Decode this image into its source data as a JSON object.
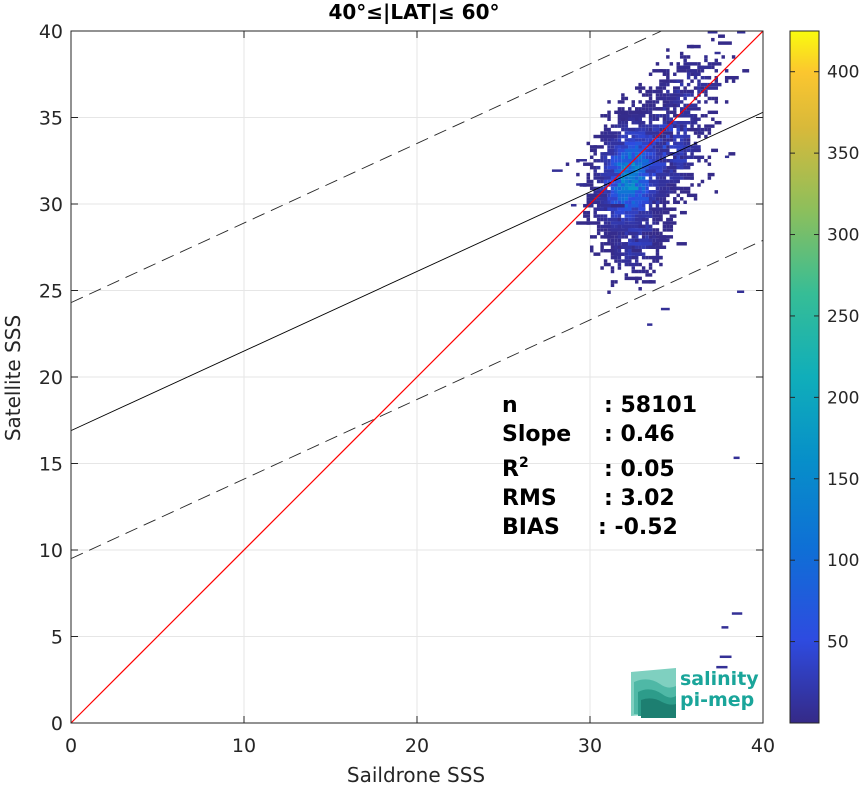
{
  "chart_data": {
    "type": "heatmap",
    "title": "40°≤|LAT|≤ 60°",
    "xlabel": "Saildrone SSS",
    "ylabel": "Satellite SSS",
    "xlim": [
      0,
      40
    ],
    "ylim": [
      0,
      40
    ],
    "xticks": [
      "0",
      "10",
      "20",
      "30",
      "40"
    ],
    "yticks": [
      "0",
      "5",
      "10",
      "15",
      "20",
      "25",
      "30",
      "35",
      "40"
    ],
    "grid": true,
    "colorbar": {
      "range": [
        0,
        425
      ],
      "ticks": [
        "50",
        "100",
        "150",
        "200",
        "250",
        "300",
        "350",
        "400"
      ],
      "colormap": "parula"
    },
    "lines": {
      "identity": {
        "slope": 1,
        "intercept": 0,
        "color": "#ff0000"
      },
      "regression": {
        "slope": 0.46,
        "intercept": 16.9,
        "color": "#000000"
      },
      "upper_bound": {
        "slope": 0.46,
        "intercept": 24.3,
        "style": "dashed"
      },
      "lower_bound": {
        "slope": 0.46,
        "intercept": 9.5,
        "style": "dashed"
      }
    },
    "density_clusters": [
      {
        "x": 32.2,
        "y": 31.5,
        "sx": 1.1,
        "sy": 1.8,
        "n": 1700,
        "peak": 200
      },
      {
        "x": 34.2,
        "y": 33.2,
        "sx": 1.3,
        "sy": 1.8,
        "n": 500,
        "peak": 60
      },
      {
        "x": 32.5,
        "y": 28.0,
        "sx": 0.9,
        "sy": 1.3,
        "n": 320,
        "peak": 40
      },
      {
        "x": 35.5,
        "y": 36.5,
        "sx": 1.2,
        "sy": 1.3,
        "n": 160,
        "peak": 25
      }
    ],
    "outlier_points": [
      {
        "x": 30.5,
        "y": 30.0
      },
      {
        "x": 28.9,
        "y": 30.0
      },
      {
        "x": 29.2,
        "y": 31.2
      },
      {
        "x": 27.8,
        "y": 32.0
      },
      {
        "x": 29.3,
        "y": 32.6
      },
      {
        "x": 33.3,
        "y": 23.1
      },
      {
        "x": 38.5,
        "y": 25.0
      },
      {
        "x": 38.3,
        "y": 15.4
      },
      {
        "x": 38.2,
        "y": 6.4
      },
      {
        "x": 37.6,
        "y": 5.6
      },
      {
        "x": 37.5,
        "y": 3.9
      },
      {
        "x": 37.3,
        "y": 3.3
      },
      {
        "x": 37.8,
        "y": 32.8
      },
      {
        "x": 36.8,
        "y": 40.0
      },
      {
        "x": 38.5,
        "y": 40.0
      },
      {
        "x": 37.2,
        "y": 38.8
      },
      {
        "x": 34.1,
        "y": 24.0
      }
    ],
    "stats": [
      {
        "label": "n",
        "value": ": 58101"
      },
      {
        "label": "Slope",
        "value": ": 0.46"
      },
      {
        "label": "R",
        "sup": "2",
        "value": ": 0.05"
      },
      {
        "label": "RMS",
        "value": ": 3.02"
      },
      {
        "label": "BIAS",
        "value": ": -0.52"
      }
    ]
  },
  "logo": {
    "line1": "salinity",
    "line2": "pi-mep"
  }
}
